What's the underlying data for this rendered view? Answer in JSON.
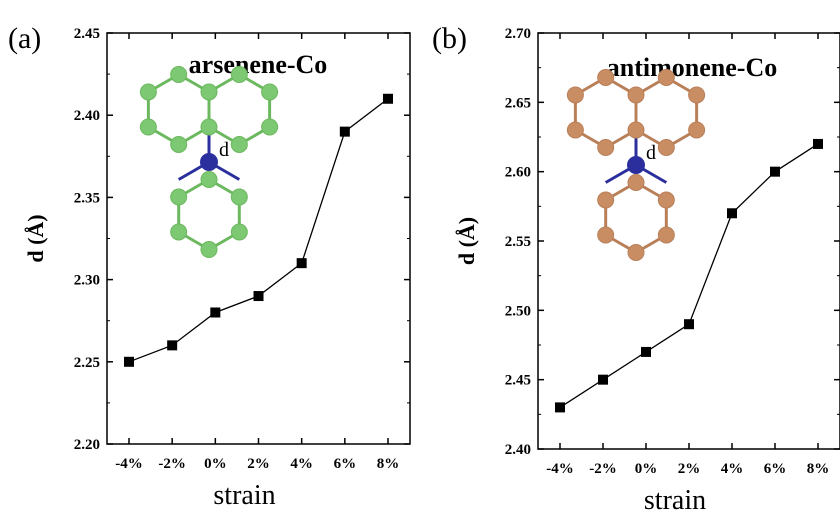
{
  "chart_data": [
    {
      "type": "line",
      "panel": "(a)",
      "title": "arsenene-Co",
      "xlabel": "strain",
      "ylabel": "d (Å)",
      "categories": [
        "-4%",
        "-2%",
        "0%",
        "2%",
        "4%",
        "6%",
        "8%"
      ],
      "series": [
        {
          "values": [
            2.25,
            2.26,
            2.28,
            2.29,
            2.31,
            2.39,
            2.41
          ]
        }
      ],
      "ylim": [
        2.2,
        2.45
      ],
      "yticks": [
        "2.20",
        "2.25",
        "2.30",
        "2.35",
        "2.40",
        "2.45"
      ],
      "inset_label": "d",
      "inset_atom_color": "#7dc872",
      "inset_bond_color": "#6cb85f",
      "center_atom_color": "#2b2f9e",
      "marker": "square",
      "grid": false
    },
    {
      "type": "line",
      "panel": "(b)",
      "title": "antimonene-Co",
      "xlabel": "strain",
      "ylabel": "d (Å)",
      "categories": [
        "-4%",
        "-2%",
        "0%",
        "2%",
        "4%",
        "6%",
        "8%"
      ],
      "series": [
        {
          "values": [
            2.43,
            2.45,
            2.47,
            2.49,
            2.57,
            2.6,
            2.62
          ]
        }
      ],
      "ylim": [
        2.4,
        2.7
      ],
      "yticks": [
        "2.40",
        "2.45",
        "2.50",
        "2.55",
        "2.60",
        "2.65",
        "2.70"
      ],
      "inset_label": "d",
      "inset_atom_color": "#c98d63",
      "inset_bond_color": "#b97f58",
      "center_atom_color": "#2b2f9e",
      "marker": "square",
      "grid": false
    }
  ]
}
